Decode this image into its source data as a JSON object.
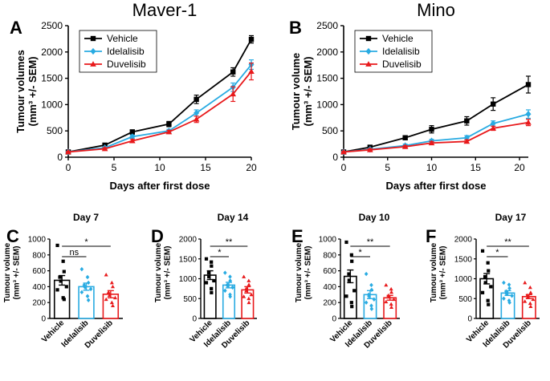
{
  "colors": {
    "Vehicle": "#000000",
    "Idelalisib": "#29abe2",
    "Duvelisib": "#e8191b"
  },
  "chart_data": [
    {
      "panel": "A",
      "type": "line",
      "title": "Maver-1",
      "xlabel": "Days after first dose",
      "ylabel": "Tumour volumes",
      "ylabel2": "(mm³ +/- SEM)",
      "xlim": [
        0,
        20
      ],
      "ylim": [
        0,
        2500
      ],
      "xticks": [
        0,
        5,
        10,
        15,
        20
      ],
      "yticks": [
        0,
        500,
        1000,
        1500,
        2000,
        2500
      ],
      "legend": [
        "Vehicle",
        "Idelalisib",
        "Duvelisib"
      ],
      "legend_position": "top-left",
      "series": [
        {
          "name": "Vehicle",
          "x": [
            0,
            4,
            7,
            11,
            14,
            18,
            20
          ],
          "values": [
            100,
            230,
            480,
            630,
            1100,
            1620,
            2240
          ],
          "err": [
            10,
            25,
            40,
            50,
            80,
            80,
            70
          ]
        },
        {
          "name": "Idelalisib",
          "x": [
            0,
            4,
            7,
            11,
            14,
            18,
            20
          ],
          "values": [
            100,
            180,
            390,
            500,
            840,
            1330,
            1760
          ],
          "err": [
            10,
            20,
            30,
            30,
            60,
            80,
            90
          ]
        },
        {
          "name": "Duvelisib",
          "x": [
            0,
            4,
            7,
            11,
            14,
            18,
            20
          ],
          "values": [
            100,
            160,
            310,
            480,
            720,
            1200,
            1630
          ],
          "err": [
            10,
            20,
            30,
            30,
            60,
            140,
            160
          ]
        }
      ]
    },
    {
      "panel": "B",
      "type": "line",
      "title": "Mino",
      "xlabel": "Days after first dose",
      "ylabel": "Tumour volume",
      "ylabel2": "(mm³ +/- SEM)",
      "xlim": [
        0,
        21
      ],
      "ylim": [
        0,
        2500
      ],
      "xticks": [
        0,
        5,
        10,
        15,
        20
      ],
      "yticks": [
        0,
        500,
        1000,
        1500,
        2000,
        2500
      ],
      "legend": [
        "Vehicle",
        "Idelalisib",
        "Duvelisib"
      ],
      "legend_position": "top-left",
      "series": [
        {
          "name": "Vehicle",
          "x": [
            0,
            3,
            7,
            10,
            14,
            17,
            21
          ],
          "values": [
            100,
            190,
            370,
            530,
            690,
            1010,
            1380
          ],
          "err": [
            10,
            30,
            40,
            70,
            80,
            120,
            160
          ]
        },
        {
          "name": "Idelalisib",
          "x": [
            0,
            3,
            7,
            10,
            14,
            17,
            21
          ],
          "values": [
            100,
            150,
            220,
            310,
            370,
            640,
            820
          ],
          "err": [
            10,
            20,
            30,
            30,
            40,
            50,
            80
          ]
        },
        {
          "name": "Duvelisib",
          "x": [
            0,
            3,
            7,
            10,
            14,
            17,
            21
          ],
          "values": [
            100,
            140,
            200,
            270,
            300,
            550,
            660
          ],
          "err": [
            10,
            20,
            20,
            30,
            30,
            40,
            60
          ]
        }
      ]
    },
    {
      "panel": "C",
      "type": "bar",
      "title": "Day 7",
      "ylabel": "Tumour volume",
      "ylabel2": "(mm³ +/- SEM)",
      "ylim": [
        0,
        1000
      ],
      "yticks": [
        0,
        200,
        400,
        600,
        800,
        1000
      ],
      "categories": [
        "Vehicle",
        "Idelalisib",
        "Duvelisib"
      ],
      "values": [
        480,
        400,
        305
      ],
      "err": [
        60,
        45,
        45
      ],
      "points": [
        [
          920,
          720,
          590,
          520,
          470,
          400,
          360,
          260,
          240
        ],
        [
          620,
          520,
          450,
          420,
          390,
          370,
          330,
          280,
          230
        ],
        [
          550,
          450,
          400,
          330,
          290,
          260,
          240,
          200,
          160
        ]
      ],
      "significance": [
        {
          "pair": [
            0,
            1
          ],
          "label": "ns"
        },
        {
          "pair": [
            0,
            2
          ],
          "label": "*"
        }
      ]
    },
    {
      "panel": "D",
      "type": "bar",
      "title": "Day 14",
      "ylabel": "Tumour volume",
      "ylabel2": "(mm³ +/- SEM)",
      "ylim": [
        0,
        2000
      ],
      "yticks": [
        0,
        500,
        1000,
        1500,
        2000
      ],
      "categories": [
        "Vehicle",
        "Idelalisib",
        "Duvelisib"
      ],
      "values": [
        1090,
        840,
        720
      ],
      "err": [
        110,
        70,
        80
      ],
      "points": [
        [
          1500,
          1420,
          1320,
          1150,
          1050,
          950,
          900,
          750,
          650
        ],
        [
          1150,
          1050,
          950,
          850,
          820,
          780,
          700,
          600,
          550
        ],
        [
          1050,
          950,
          850,
          750,
          700,
          600,
          550,
          500,
          400
        ]
      ],
      "significance": [
        {
          "pair": [
            0,
            1
          ],
          "label": "*"
        },
        {
          "pair": [
            0,
            2
          ],
          "label": "**"
        }
      ]
    },
    {
      "panel": "E",
      "type": "bar",
      "title": "Day 10",
      "ylabel": "Tumour volume",
      "ylabel2": "(mm³ +/- SEM)",
      "ylim": [
        0,
        1000
      ],
      "yticks": [
        0,
        200,
        400,
        600,
        800,
        1000
      ],
      "categories": [
        "Vehicle",
        "Idelalisib",
        "Duvelisib"
      ],
      "values": [
        530,
        300,
        260
      ],
      "err": [
        80,
        50,
        30
      ],
      "points": [
        [
          960,
          800,
          720,
          560,
          480,
          350,
          280,
          200,
          150
        ],
        [
          560,
          420,
          360,
          300,
          280,
          240,
          200,
          160,
          120
        ],
        [
          420,
          370,
          330,
          290,
          270,
          240,
          210,
          180,
          140
        ]
      ],
      "significance": [
        {
          "pair": [
            0,
            1
          ],
          "label": "*"
        },
        {
          "pair": [
            0,
            2
          ],
          "label": "**"
        }
      ]
    },
    {
      "panel": "F",
      "type": "bar",
      "title": "Day 17",
      "ylabel": "Tumour volume",
      "ylabel2": "(mm³ +/- SEM)",
      "ylim": [
        0,
        2000
      ],
      "yticks": [
        0,
        500,
        1000,
        1500,
        2000
      ],
      "categories": [
        "Vehicle",
        "Idelalisib",
        "Duvelisib"
      ],
      "values": [
        1000,
        640,
        550
      ],
      "err": [
        130,
        60,
        50
      ],
      "points": [
        [
          1700,
          1400,
          1200,
          1050,
          900,
          800,
          650,
          450,
          350
        ],
        [
          900,
          850,
          760,
          680,
          620,
          570,
          500,
          450,
          400
        ],
        [
          900,
          780,
          650,
          580,
          530,
          480,
          430,
          380,
          300
        ]
      ],
      "significance": [
        {
          "pair": [
            0,
            1
          ],
          "label": "*"
        },
        {
          "pair": [
            0,
            2
          ],
          "label": "**"
        }
      ]
    }
  ]
}
